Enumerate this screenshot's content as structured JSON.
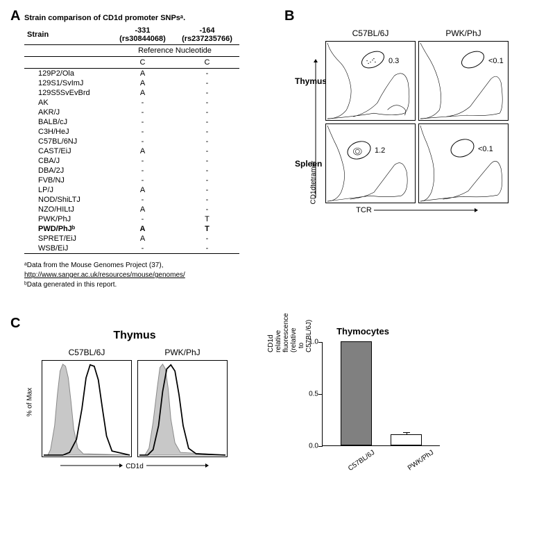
{
  "panels": {
    "a": "A",
    "b": "B",
    "c": "C"
  },
  "panelA": {
    "title": "Strain comparison of CD1d promoter SNPsᵃ.",
    "headers": {
      "strain": "Strain",
      "snp1": "-331\n(rs30844068)",
      "snp2": "-164\n(rs237235766)"
    },
    "refRow": {
      "label": "Reference Nucleotide",
      "v1": "C",
      "v2": "C"
    },
    "rows": [
      {
        "strain": "129P2/Ola",
        "v1": "A",
        "v2": "-",
        "bold": false
      },
      {
        "strain": "129S1/SvImJ",
        "v1": "A",
        "v2": "-",
        "bold": false
      },
      {
        "strain": "129S5SvEvBrd",
        "v1": "A",
        "v2": "-",
        "bold": false
      },
      {
        "strain": "AK",
        "v1": "-",
        "v2": "-",
        "bold": false
      },
      {
        "strain": "AKR/J",
        "v1": "-",
        "v2": "-",
        "bold": false
      },
      {
        "strain": "BALB/cJ",
        "v1": "-",
        "v2": "-",
        "bold": false
      },
      {
        "strain": "C3H/HeJ",
        "v1": "-",
        "v2": "-",
        "bold": false
      },
      {
        "strain": "C57BL/6NJ",
        "v1": "-",
        "v2": "-",
        "bold": false
      },
      {
        "strain": "CAST/EiJ",
        "v1": "A",
        "v2": "-",
        "bold": false
      },
      {
        "strain": "CBA/J",
        "v1": "-",
        "v2": "-",
        "bold": false
      },
      {
        "strain": "DBA/2J",
        "v1": "-",
        "v2": "-",
        "bold": false
      },
      {
        "strain": "FVB/NJ",
        "v1": "-",
        "v2": "-",
        "bold": false
      },
      {
        "strain": "LP/J",
        "v1": "A",
        "v2": "-",
        "bold": false
      },
      {
        "strain": "NOD/ShiLTJ",
        "v1": "-",
        "v2": "-",
        "bold": false
      },
      {
        "strain": "NZO/HILtJ",
        "v1": "A",
        "v2": "-",
        "bold": false
      },
      {
        "strain": "PWK/PhJ",
        "v1": "-",
        "v2": "T",
        "bold": false
      },
      {
        "strain": "PWD/PhJᵇ",
        "v1": "A",
        "v2": "T",
        "bold": true
      },
      {
        "strain": "SPRET/EiJ",
        "v1": "A",
        "v2": "-",
        "bold": false
      },
      {
        "strain": "WSB/EiJ",
        "v1": "-",
        "v2": "-",
        "bold": false
      }
    ],
    "footnote1": "ᵃData from the Mouse Genomes Project (37),",
    "footnote_link": "http://www.sanger.ac.uk/resources/mouse/genomes/",
    "footnote2": "ᵇData generated in this report."
  },
  "panelB": {
    "col1": "C57BL/6J",
    "col2": "PWK/PhJ",
    "row1": "Thymus",
    "row2": "Spleen",
    "yaxis": "CD1dtetramer",
    "xaxis": "TCR",
    "gates": {
      "thymus_b6": "0.3",
      "thymus_pwk": "<0.1",
      "spleen_b6": "1.2",
      "spleen_pwk": "<0.1"
    }
  },
  "panelC": {
    "hist": {
      "title": "Thymus",
      "plot1_label": "C57BL/6J",
      "plot2_label": "PWK/PhJ",
      "yaxis": "% of Max",
      "xaxis": "CD1d"
    },
    "bar": {
      "title": "Thymocytes",
      "yaxis": "CD1d relative fluorescence\n(relative to C57BL/6J)",
      "ymax": 1.0,
      "ytick": 0.5,
      "ticks": [
        "0.0",
        "0.5",
        "1.0"
      ],
      "bars": [
        {
          "label": "C57BL/6J",
          "value": 1.0,
          "color": "#808080",
          "err": 0.0
        },
        {
          "label": "PWK/PhJ",
          "value": 0.11,
          "color": "#ffffff",
          "err": 0.01
        }
      ]
    }
  }
}
